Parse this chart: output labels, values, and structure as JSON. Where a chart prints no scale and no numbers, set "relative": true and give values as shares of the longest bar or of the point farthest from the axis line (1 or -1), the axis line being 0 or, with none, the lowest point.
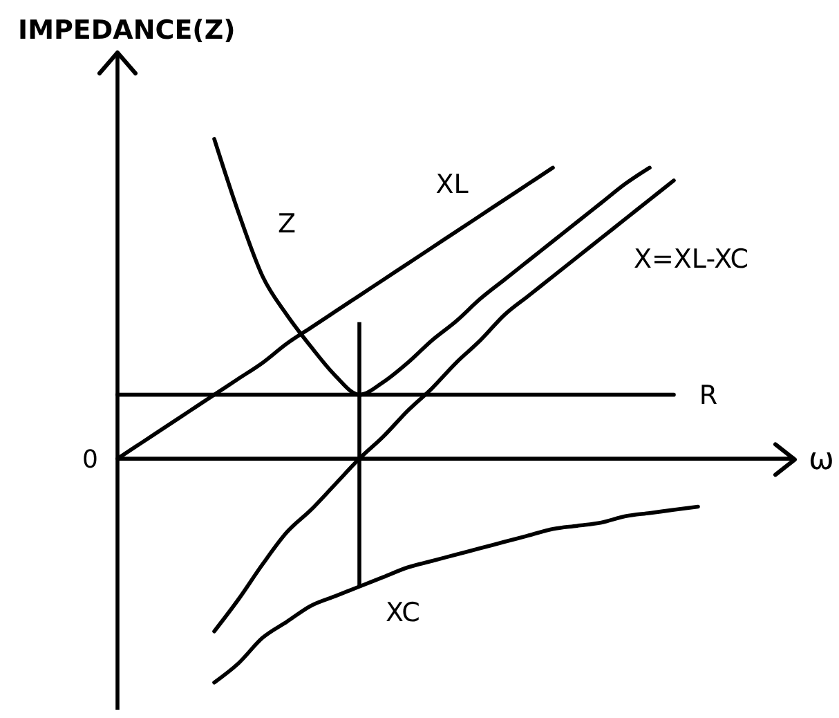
{
  "chart_data": {
    "type": "line",
    "relative": true,
    "ylabel": "IMPEDANCE(Z)",
    "xlabel": "ω",
    "marker": "none",
    "annotations": [
      "0"
    ],
    "categories": [
      null,
      null,
      null,
      null,
      null,
      null,
      null,
      null,
      null,
      null,
      null,
      null,
      null,
      null,
      null,
      null,
      null,
      null,
      null,
      null,
      null,
      null,
      null,
      null,
      null,
      null,
      null,
      null,
      null
    ],
    "series": [
      {
        "name": "XL",
        "color": "#000000",
        "values": [
          0,
          0.05,
          0.1,
          0.15,
          0.2,
          0.25,
          0.3,
          0.36,
          0.41,
          0.46,
          0.51,
          0.56,
          0.61,
          0.66,
          0.71,
          0.76,
          0.81,
          0.86,
          0.91,
          null,
          null,
          null,
          null,
          null,
          null,
          null,
          null,
          null,
          null
        ]
      },
      {
        "name": "Z",
        "color": "#000000",
        "values": [
          null,
          null,
          null,
          null,
          1.0,
          0.77,
          0.57,
          0.45,
          0.35,
          0.26,
          0.2,
          0.24,
          0.3,
          0.37,
          0.43,
          0.5,
          0.56,
          0.62,
          0.68,
          0.74,
          0.8,
          0.86,
          0.91,
          null,
          null,
          null,
          null,
          null,
          null
        ]
      },
      {
        "name": "X=XL-XC",
        "color": "#000000",
        "values": [
          null,
          null,
          null,
          null,
          -0.54,
          -0.44,
          -0.33,
          -0.23,
          -0.16,
          -0.08,
          0,
          0.07,
          0.15,
          0.22,
          0.3,
          0.37,
          0.45,
          0.51,
          0.57,
          0.63,
          0.69,
          0.75,
          0.81,
          0.87,
          null,
          null,
          null,
          null,
          null
        ]
      },
      {
        "name": "R",
        "color": "#000000",
        "values": [
          0.2,
          0.2,
          0.2,
          0.2,
          0.2,
          0.2,
          0.2,
          0.2,
          0.2,
          0.2,
          0.2,
          0.2,
          0.2,
          0.2,
          0.2,
          0.2,
          0.2,
          0.2,
          0.2,
          0.2,
          0.2,
          0.2,
          0.2,
          0.2,
          null,
          null,
          null,
          null,
          null
        ]
      },
      {
        "name": "XC",
        "color": "#000000",
        "values": [
          null,
          null,
          null,
          null,
          -0.7,
          -0.64,
          -0.56,
          -0.51,
          -0.46,
          -0.43,
          -0.4,
          -0.37,
          -0.34,
          -0.32,
          -0.3,
          -0.28,
          -0.26,
          -0.24,
          -0.22,
          -0.21,
          -0.2,
          -0.18,
          -0.17,
          -0.16,
          -0.15,
          null,
          null,
          null,
          null
        ]
      }
    ]
  }
}
